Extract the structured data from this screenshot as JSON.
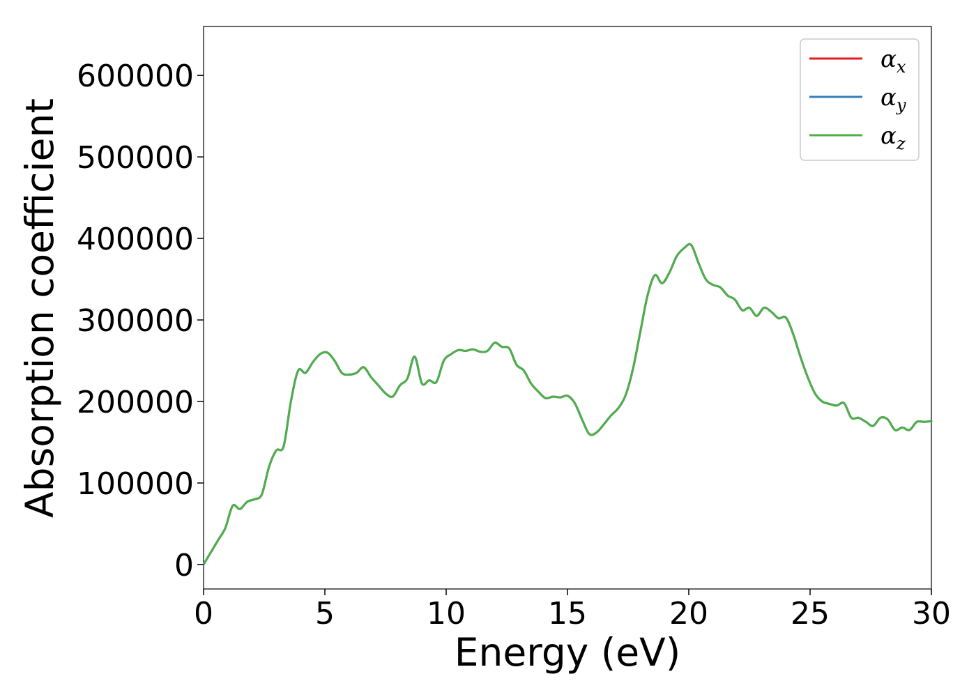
{
  "chart_data": {
    "type": "line",
    "title": "",
    "xlabel": "Energy (eV)",
    "ylabel": "Absorption coefficient",
    "xlim": [
      0,
      30
    ],
    "ylim": [
      -30000,
      660000
    ],
    "xticks": [
      0,
      5,
      10,
      15,
      20,
      25,
      30
    ],
    "yticks": [
      0,
      100000,
      200000,
      300000,
      400000,
      500000,
      600000
    ],
    "grid": false,
    "legend_position": "top-right",
    "series": [
      {
        "name": "x",
        "color": "#e41a1c"
      },
      {
        "name": "y",
        "color": "#377eb8"
      },
      {
        "name": "z",
        "color": "#4daf4a"
      }
    ],
    "x": [
      0,
      0.3,
      0.6,
      0.9,
      1.2,
      1.5,
      1.8,
      2.1,
      2.4,
      2.7,
      3.0,
      3.3,
      3.6,
      3.9,
      4.2,
      4.5,
      4.8,
      5.1,
      5.4,
      5.7,
      6.0,
      6.3,
      6.6,
      6.9,
      7.2,
      7.5,
      7.8,
      8.1,
      8.4,
      8.7,
      9.0,
      9.3,
      9.6,
      9.9,
      10.2,
      10.5,
      10.8,
      11.1,
      11.4,
      11.7,
      12.0,
      12.3,
      12.6,
      12.9,
      13.2,
      13.5,
      13.8,
      14.1,
      14.4,
      14.7,
      15.0,
      15.3,
      15.6,
      15.9,
      16.2,
      16.5,
      16.8,
      17.1,
      17.4,
      17.7,
      18.0,
      18.3,
      18.6,
      18.9,
      19.2,
      19.5,
      19.8,
      20.1,
      20.4,
      20.7,
      21.0,
      21.3,
      21.6,
      21.9,
      22.2,
      22.5,
      22.8,
      23.1,
      23.4,
      23.7,
      24.0,
      24.3,
      24.6,
      24.9,
      25.2,
      25.5,
      25.8,
      26.1,
      26.4,
      26.7,
      27.0,
      27.3,
      27.6,
      27.9,
      28.2,
      28.5,
      28.8,
      29.1,
      29.4,
      29.7,
      30.0
    ],
    "y": [
      0,
      15000,
      30000,
      45000,
      72000,
      68000,
      77000,
      80000,
      86000,
      120000,
      140000,
      145000,
      200000,
      238000,
      235000,
      248000,
      258000,
      260000,
      250000,
      235000,
      233000,
      235000,
      242000,
      230000,
      220000,
      210000,
      206000,
      220000,
      228000,
      255000,
      222000,
      226000,
      224000,
      250000,
      258000,
      263000,
      262000,
      264000,
      261000,
      262000,
      272000,
      267000,
      265000,
      245000,
      238000,
      222000,
      212000,
      204000,
      206000,
      205000,
      207000,
      198000,
      178000,
      160000,
      162000,
      172000,
      183000,
      192000,
      208000,
      240000,
      285000,
      330000,
      355000,
      345000,
      358000,
      378000,
      388000,
      392000,
      370000,
      350000,
      343000,
      340000,
      330000,
      325000,
      312000,
      315000,
      305000,
      315000,
      310000,
      302000,
      303000,
      283000,
      255000,
      230000,
      210000,
      200000,
      197000,
      195000,
      198000,
      180000,
      180000,
      175000,
      170000,
      180000,
      178000,
      165000,
      168000,
      165000,
      175000,
      175000,
      176000
    ]
  },
  "legend": {
    "symbol": "α"
  }
}
